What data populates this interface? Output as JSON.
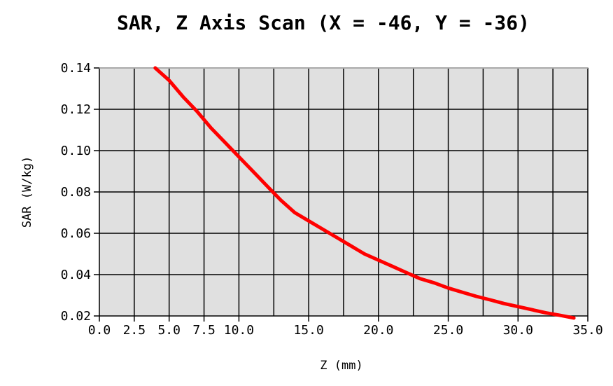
{
  "chart_data": {
    "type": "line",
    "title": "SAR, Z Axis Scan (X = -46, Y = -36)",
    "xlabel": "Z (mm)",
    "ylabel": "SAR (W/kg)",
    "xlim": [
      0,
      35
    ],
    "ylim": [
      0.02,
      0.14
    ],
    "xticks": [
      0,
      2.5,
      5,
      7.5,
      10,
      15,
      20,
      25,
      30,
      35
    ],
    "xtick_labels": [
      "0.0",
      "2.5",
      "5.0",
      "7.5",
      "10.0",
      "15.0",
      "20.0",
      "25.0",
      "30.0",
      "35.0"
    ],
    "x_grid": [
      0,
      2.5,
      5,
      7.5,
      10,
      12.5,
      15,
      17.5,
      20,
      22.5,
      25,
      27.5,
      30,
      32.5,
      35
    ],
    "yticks": [
      0.02,
      0.04,
      0.06,
      0.08,
      0.1,
      0.12,
      0.14
    ],
    "ytick_labels": [
      "0.02",
      "0.04",
      "0.06",
      "0.08",
      "0.10",
      "0.12",
      "0.14"
    ],
    "grid": true,
    "background": "#e0e0e0",
    "series": [
      {
        "color": "#ff0000",
        "x": [
          4.0,
          5.0,
          6.0,
          7.0,
          8.0,
          9.0,
          10.0,
          11.0,
          12.0,
          13.0,
          14.0,
          15.0,
          16.0,
          17.0,
          18.0,
          19.0,
          20.0,
          21.0,
          22.0,
          23.0,
          24.0,
          25.0,
          26.0,
          27.0,
          28.0,
          29.0,
          30.0,
          31.0,
          32.0,
          33.0,
          34.0
        ],
        "y": [
          0.14,
          0.134,
          0.126,
          0.119,
          0.111,
          0.104,
          0.097,
          0.09,
          0.083,
          0.076,
          0.07,
          0.066,
          0.062,
          0.058,
          0.054,
          0.05,
          0.047,
          0.044,
          0.041,
          0.038,
          0.036,
          0.0335,
          0.0315,
          0.0295,
          0.0278,
          0.026,
          0.0245,
          0.023,
          0.0215,
          0.0203,
          0.019
        ]
      }
    ]
  }
}
